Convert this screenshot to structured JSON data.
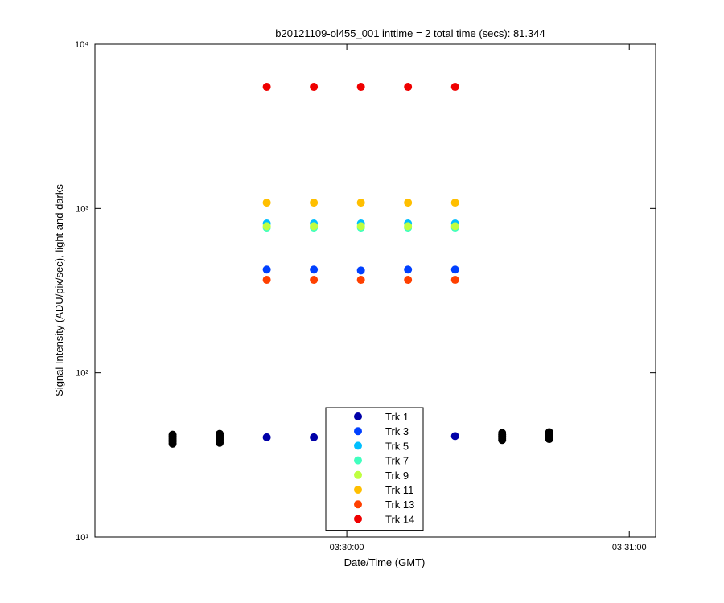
{
  "chart_data": {
    "type": "scatter",
    "title": "b20121109-ol455_001 inttime = 2 total time (secs): 81.344",
    "x_label": "Date/Time (GMT)",
    "y_label": "Signal Intensity (ADU/pix/sec), light and darks",
    "log_y": true,
    "xlim": [
      12546.5,
      12665.6
    ],
    "xticks": [
      {
        "value": 12600,
        "label": "03:30:00"
      },
      {
        "value": 12660,
        "label": "03:31:00"
      }
    ],
    "ylim": [
      10,
      10000
    ],
    "yticks": [
      {
        "value": 10,
        "label": "10¹"
      },
      {
        "value": 100,
        "label": "10²"
      },
      {
        "value": 1000,
        "label": "10³"
      },
      {
        "value": 10000,
        "label": "10⁴"
      }
    ],
    "legend": "bottom-center",
    "series": [
      {
        "color": "#000000",
        "x": [
          12563,
          12563,
          12563,
          12563,
          12563,
          12563,
          12573,
          12573,
          12573,
          12573,
          12573,
          12573,
          12633,
          12633,
          12633,
          12633,
          12633,
          12643,
          12643,
          12643,
          12643,
          12643
        ],
        "values": [
          37,
          38,
          39,
          40,
          41,
          42,
          37.5,
          38.5,
          39.5,
          40.5,
          41.5,
          42.5,
          39,
          40,
          41,
          42,
          43,
          39.5,
          40.5,
          41.5,
          42.5,
          43.5
        ]
      },
      {
        "name": "Trk 1",
        "color": "#0000a8",
        "x": [
          12583,
          12593,
          12603,
          12613,
          12623
        ],
        "values": [
          40.5,
          40.5,
          40.5,
          40.8,
          41.2
        ]
      },
      {
        "name": "Trk 3",
        "color": "#0040ff",
        "x": [
          12583,
          12593,
          12603,
          12613,
          12623
        ],
        "values": [
          425,
          425,
          420,
          425,
          425
        ]
      },
      {
        "name": "Trk 5",
        "color": "#00bfff",
        "x": [
          12583,
          12593,
          12603,
          12613,
          12623
        ],
        "values": [
          810,
          810,
          810,
          810,
          810
        ]
      },
      {
        "name": "Trk 7",
        "color": "#40ffbf",
        "x": [
          12583,
          12593,
          12603,
          12613,
          12623
        ],
        "values": [
          765,
          765,
          765,
          765,
          765
        ]
      },
      {
        "name": "Trk 9",
        "color": "#bfff40",
        "x": [
          12583,
          12593,
          12603,
          12613,
          12623
        ],
        "values": [
          780,
          780,
          780,
          780,
          780
        ]
      },
      {
        "name": "Trk 11",
        "color": "#ffbf00",
        "x": [
          12583,
          12593,
          12603,
          12613,
          12623
        ],
        "values": [
          1085,
          1085,
          1085,
          1085,
          1085
        ]
      },
      {
        "name": "Trk 13",
        "color": "#ff4000",
        "x": [
          12583,
          12593,
          12603,
          12613,
          12623
        ],
        "values": [
          368,
          368,
          368,
          368,
          368
        ]
      },
      {
        "name": "Trk 14",
        "color": "#ef0000",
        "x": [
          12583,
          12593,
          12603,
          12613,
          12623
        ],
        "values": [
          5500,
          5500,
          5500,
          5500,
          5500
        ]
      }
    ]
  }
}
